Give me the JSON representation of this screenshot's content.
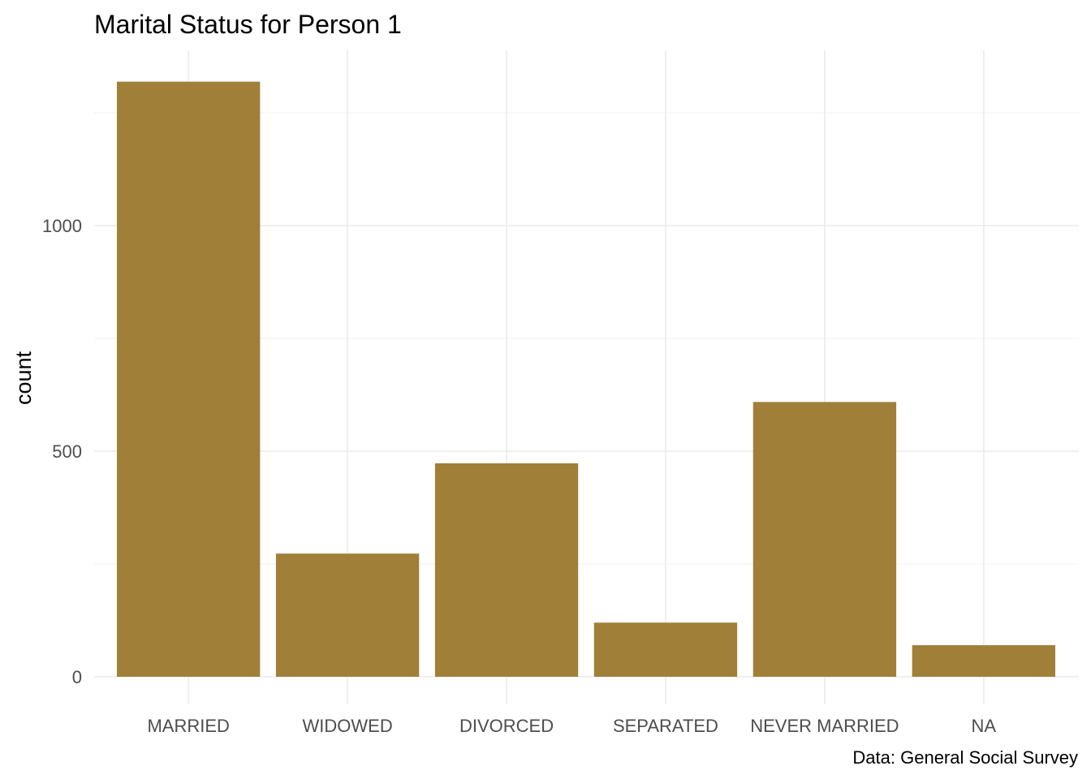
{
  "chart_data": {
    "type": "bar",
    "title": "Marital Status for Person 1",
    "xlabel": "",
    "ylabel": "count",
    "caption": "Data: General Social Survey",
    "categories": [
      "MARRIED",
      "WIDOWED",
      "DIVORCED",
      "SEPARATED",
      "NEVER MARRIED",
      "NA"
    ],
    "values": [
      1319,
      273,
      473,
      120,
      609,
      70
    ],
    "y_ticks": [
      0,
      500,
      1000
    ],
    "y_tick_labels": [
      "0",
      "500",
      "1000"
    ],
    "ylim": [
      0,
      1385
    ],
    "grid": true,
    "legend": "none",
    "bar_color": "#A07F38"
  }
}
